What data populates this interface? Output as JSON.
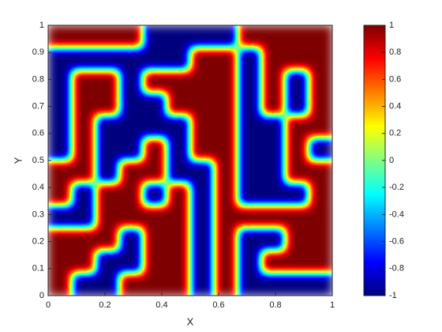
{
  "chart_data": {
    "type": "heatmap",
    "xlabel": "X",
    "ylabel": "Y",
    "xlim": [
      0,
      1
    ],
    "ylim": [
      0,
      1
    ],
    "xticks": [
      0,
      0.2,
      0.4,
      0.6,
      0.8,
      1
    ],
    "yticks": [
      0,
      0.1,
      0.2,
      0.3,
      0.4,
      0.5,
      0.6,
      0.7,
      0.8,
      0.9,
      1
    ],
    "colormap": "jet",
    "clim": [
      -1,
      1
    ],
    "cticks": [
      -1,
      -0.8,
      -0.6,
      -0.4,
      -0.2,
      0,
      0.2,
      0.4,
      0.6,
      0.8,
      1
    ],
    "z": [
      [
        1,
        1,
        1,
        1,
        -1,
        -1,
        -1,
        -1,
        1,
        1,
        1,
        1
      ],
      [
        -1,
        -1,
        -1,
        -1,
        -1,
        -1,
        1,
        1,
        -1,
        1,
        1,
        1
      ],
      [
        -1,
        1,
        1,
        -1,
        1,
        1,
        1,
        1,
        -1,
        1,
        -1,
        1
      ],
      [
        -1,
        1,
        1,
        -1,
        -1,
        1,
        1,
        1,
        -1,
        1,
        -1,
        1
      ],
      [
        -1,
        1,
        -1,
        -1,
        -1,
        -1,
        1,
        1,
        -1,
        -1,
        1,
        1
      ],
      [
        -1,
        1,
        -1,
        -1,
        1,
        -1,
        1,
        1,
        -1,
        -1,
        1,
        -1
      ],
      [
        1,
        1,
        -1,
        1,
        1,
        -1,
        -1,
        1,
        -1,
        -1,
        1,
        1
      ],
      [
        1,
        -1,
        1,
        1,
        -1,
        1,
        -1,
        1,
        -1,
        -1,
        -1,
        1
      ],
      [
        -1,
        -1,
        1,
        1,
        1,
        1,
        -1,
        1,
        1,
        1,
        1,
        1
      ],
      [
        1,
        1,
        1,
        -1,
        1,
        1,
        -1,
        1,
        -1,
        -1,
        1,
        1
      ],
      [
        1,
        1,
        -1,
        -1,
        1,
        1,
        -1,
        1,
        -1,
        1,
        1,
        1
      ],
      [
        1,
        -1,
        -1,
        1,
        1,
        1,
        -1,
        1,
        -1,
        -1,
        -1,
        -1
      ]
    ]
  }
}
